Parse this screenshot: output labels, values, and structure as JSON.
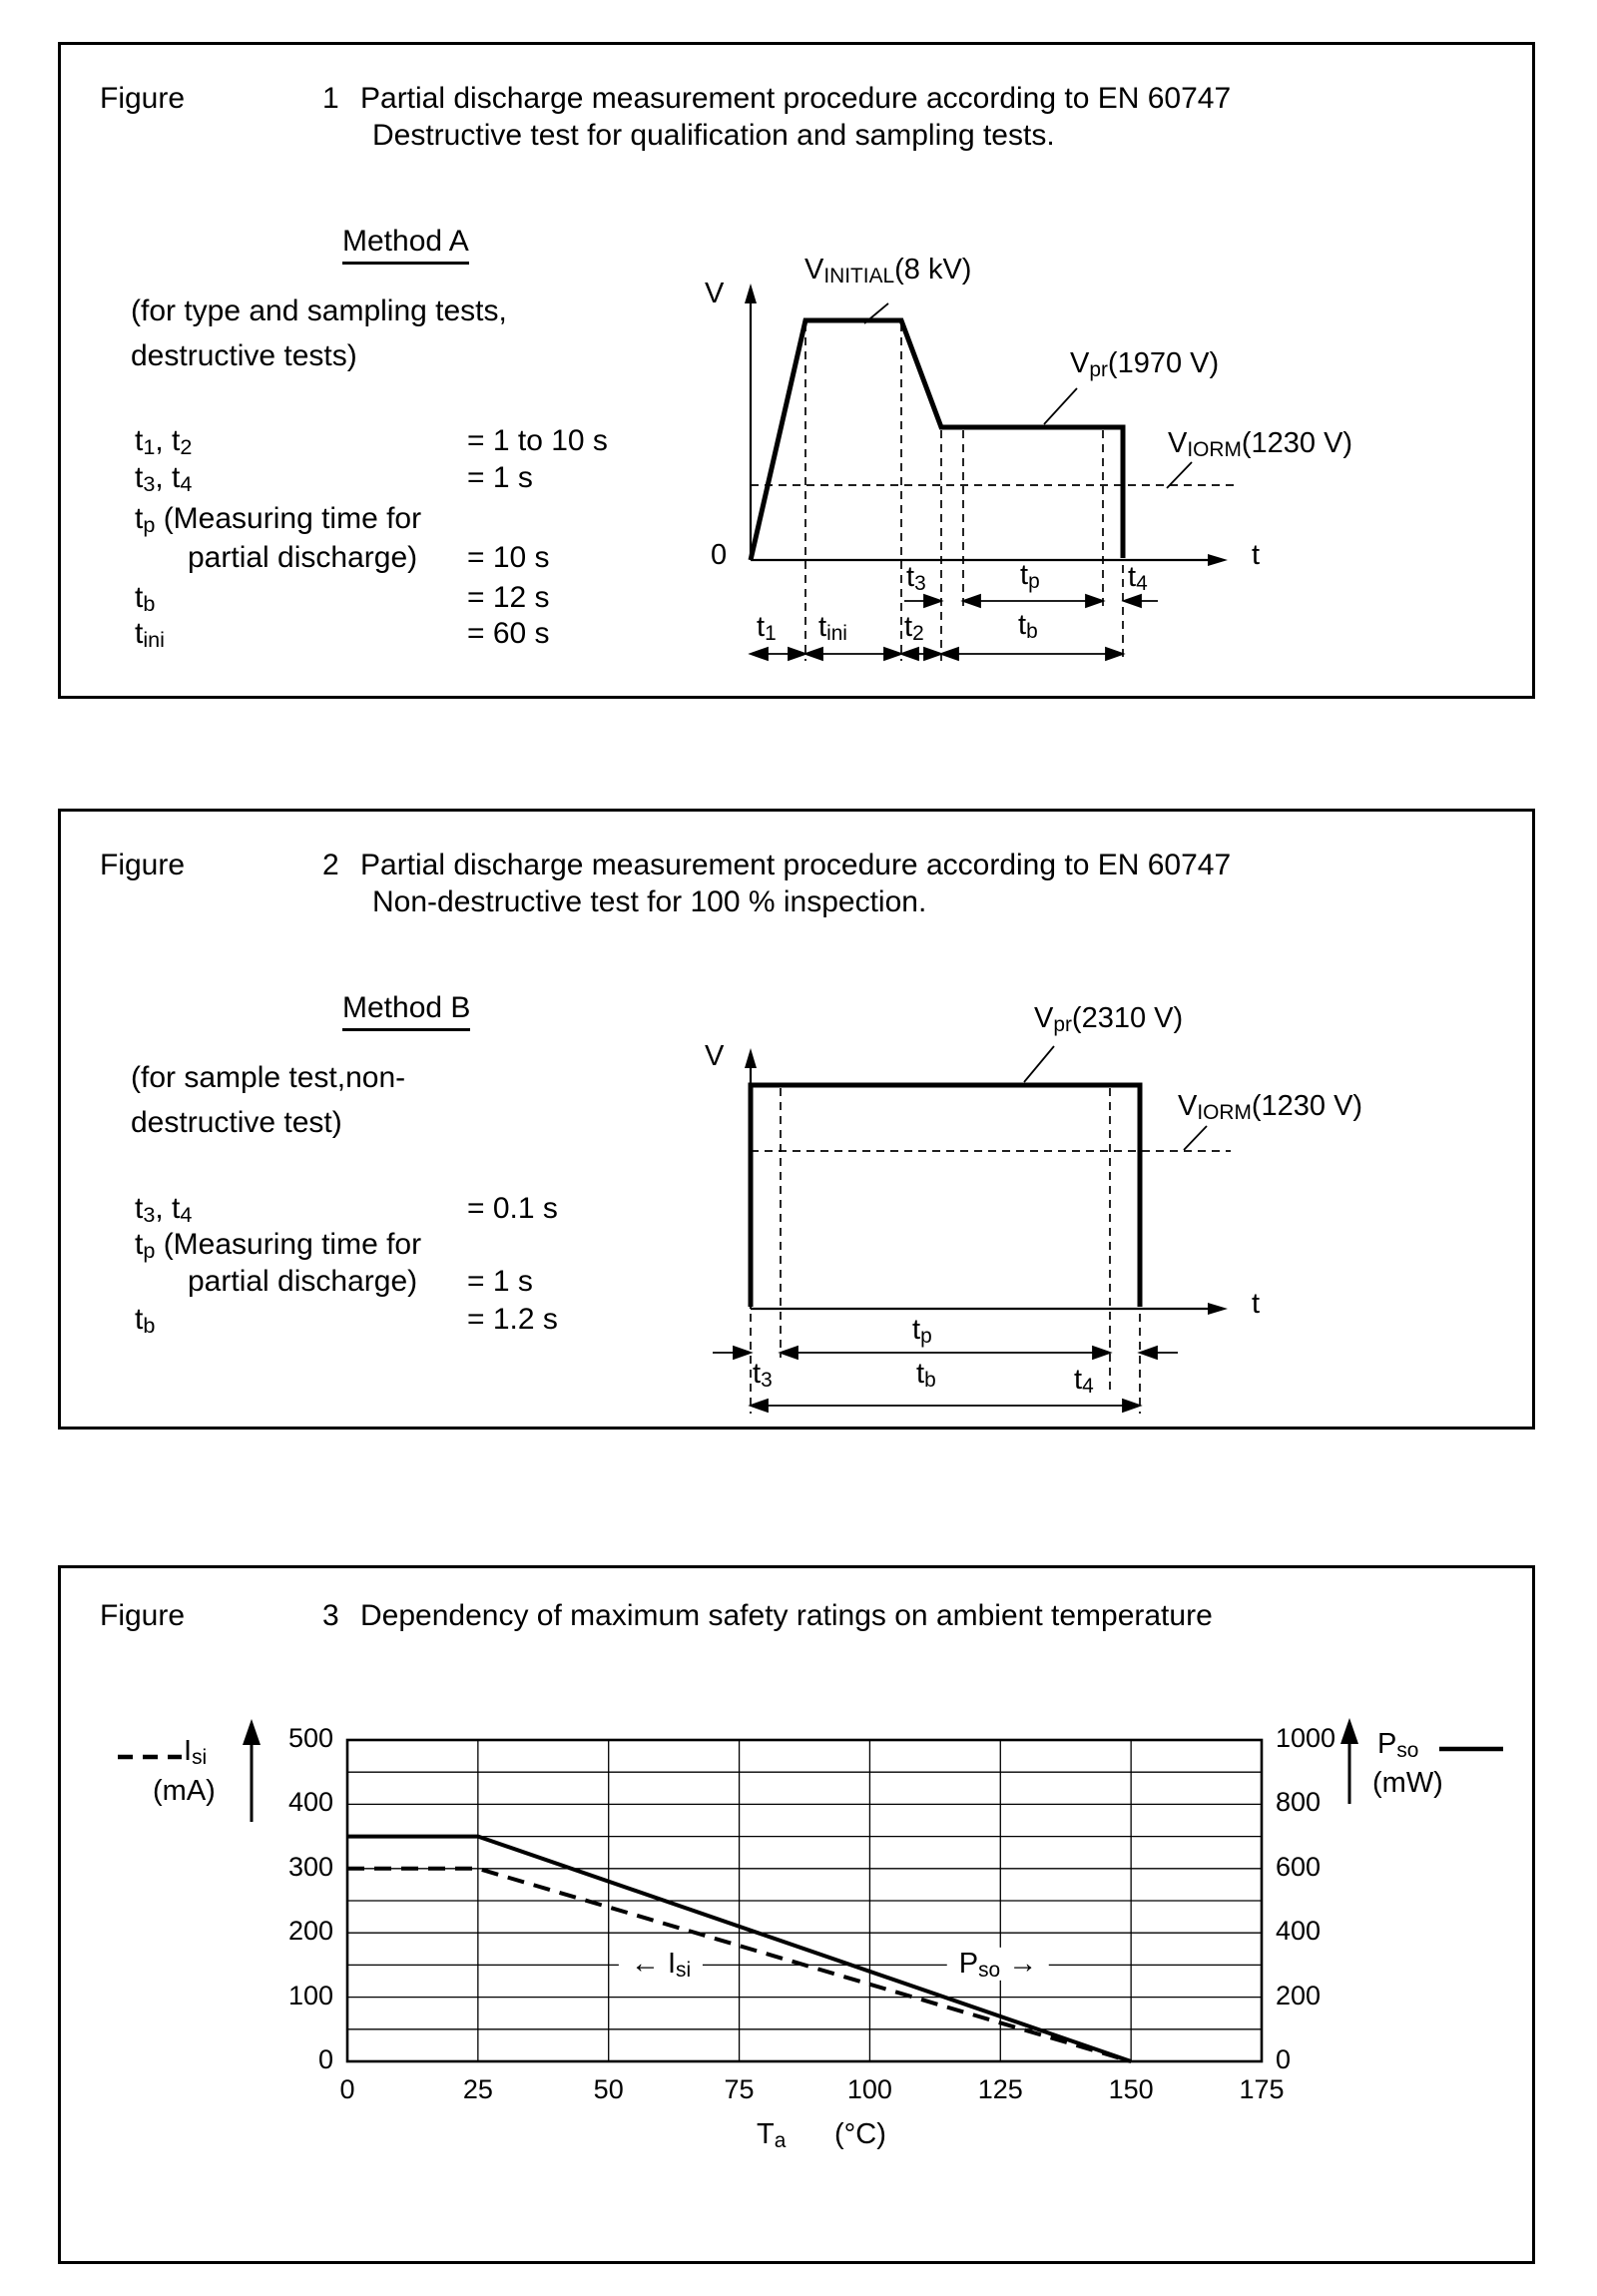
{
  "document": {
    "background": "#ffffff",
    "ink": "#000000"
  },
  "figure1": {
    "label": "Figure",
    "number": "1",
    "title_line1": "Partial discharge measurement procedure according to EN 60747",
    "title_line2": "Destructive test for qualification and sampling tests.",
    "method": "Method A",
    "note_line1": "(for type and sampling tests,",
    "note_line2": "destructive tests)",
    "params": [
      {
        "name": "t{1}, t{2}",
        "value": "= 1 to 10 s"
      },
      {
        "name": "t{3}, t{4}",
        "value": "= 1 s"
      },
      {
        "name": "t{p} (Measuring time for",
        "value": ""
      },
      {
        "name": "partial discharge)",
        "value": "= 10 s"
      },
      {
        "name": "t{b}",
        "value": "= 12 s"
      },
      {
        "name": "t{ini}",
        "value": "= 60 s"
      }
    ],
    "diagram": {
      "v_axis_label": "V",
      "origin_label": "0",
      "t_axis_label": "t",
      "v_initial_label": "V{INITIAL}(8 kV)",
      "v_pr_label": "V{pr}(1970 V)",
      "v_iorm_label": "V{IORM}(1230 V)",
      "t1": "t{1}",
      "tini": "t{ini}",
      "t2": "t{2}",
      "t3": "t{3}",
      "tp": "t{p}",
      "t4": "t{4}",
      "tb": "t{b}"
    }
  },
  "figure2": {
    "label": "Figure",
    "number": "2",
    "title_line1": "Partial discharge measurement procedure according to EN 60747",
    "title_line2": "Non-destructive test for 100 % inspection.",
    "method": "Method B",
    "note_line1": "(for sample test,non-",
    "note_line2": "destructive test)",
    "params": [
      {
        "name": "t{3}, t{4}",
        "value": "= 0.1 s"
      },
      {
        "name": "t{p} (Measuring time for",
        "value": ""
      },
      {
        "name": "partial discharge)",
        "value": "= 1 s"
      },
      {
        "name": "t{b}",
        "value": "= 1.2 s"
      }
    ],
    "diagram": {
      "v_axis_label": "V",
      "t_axis_label": "t",
      "v_pr_label": "V{pr}(2310 V)",
      "v_iorm_label": "V{IORM}(1230 V)",
      "t3": "t{3}",
      "tp": "t{p}",
      "t4": "t{4}",
      "tb": "t{b}"
    }
  },
  "figure3": {
    "label": "Figure",
    "number": "3",
    "title_line1": "Dependency of maximum safety ratings on ambient temperature",
    "left_legend_series": "I{si}",
    "left_legend_unit": "(mA)",
    "right_legend_series": "P{so}",
    "right_legend_unit": "(mW)",
    "curve_label_isi": "←  I{si}",
    "curve_label_pso": "P{so} →",
    "x_axis_title": "T{a}",
    "x_axis_unit": "(°C)"
  },
  "chart_data": {
    "type": "line",
    "title": "Dependency of maximum safety ratings on ambient temperature",
    "xlabel": "Ta (°C)",
    "xlim": [
      0,
      175
    ],
    "x_ticks": [
      0,
      25,
      50,
      75,
      100,
      125,
      150,
      175
    ],
    "y_left": {
      "label": "Isi (mA)",
      "lim": [
        0,
        500
      ],
      "ticks": [
        500,
        400,
        300,
        200,
        100,
        0
      ],
      "grid_step": 50
    },
    "y_right": {
      "label": "Pso (mW)",
      "lim": [
        0,
        1000
      ],
      "ticks": [
        1000,
        800,
        600,
        400,
        200,
        0
      ]
    },
    "grid": "on",
    "legend_position": "outside left and right",
    "series": [
      {
        "name": "Isi",
        "axis": "left",
        "unit": "mA",
        "line_style": "dashed",
        "points": [
          [
            0,
            300
          ],
          [
            25,
            300
          ],
          [
            150,
            0
          ]
        ]
      },
      {
        "name": "Pso",
        "axis": "right",
        "unit": "mW",
        "line_style": "solid",
        "points": [
          [
            0,
            700
          ],
          [
            25,
            700
          ],
          [
            150,
            0
          ]
        ]
      }
    ]
  }
}
